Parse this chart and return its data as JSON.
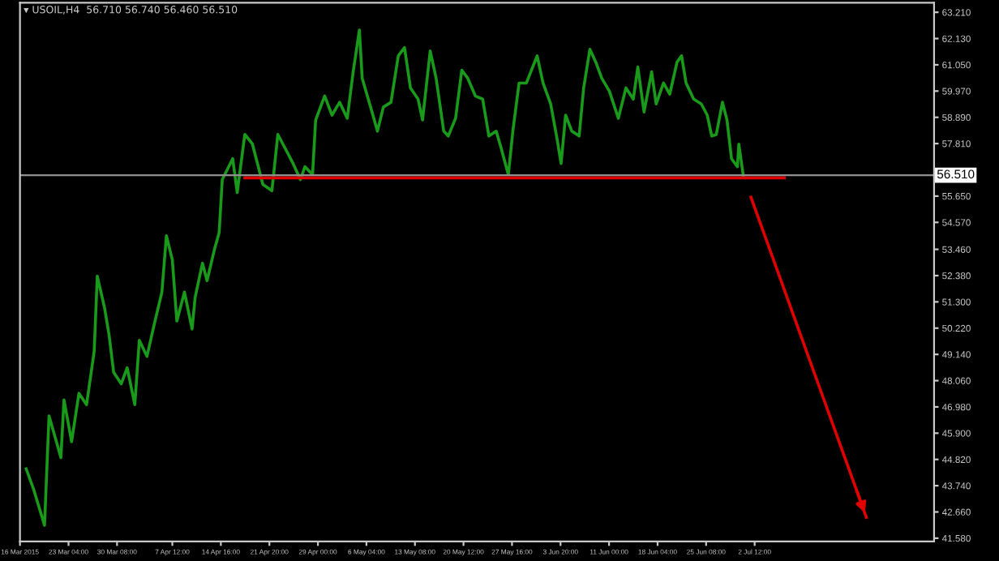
{
  "chart_data": {
    "type": "line",
    "title": "▾ USOIL,H4  56.710 56.740 56.460 56.510",
    "xlim": [
      "2015-03-16T00:00",
      "2015-07-29T00:00"
    ],
    "ylim": [
      41.45,
      63.6
    ],
    "xticks": [
      {
        "value": "2015-03-16T00:00",
        "label": "16 Mar 2015"
      },
      {
        "value": "2015-03-23T04:00",
        "label": "23 Mar 04:00"
      },
      {
        "value": "2015-03-30T08:00",
        "label": "30 Mar 08:00"
      },
      {
        "value": "2015-04-07T12:00",
        "label": "7 Apr 12:00"
      },
      {
        "value": "2015-04-14T16:00",
        "label": "14 Apr 16:00"
      },
      {
        "value": "2015-04-21T20:00",
        "label": "21 Apr 20:00"
      },
      {
        "value": "2015-04-29T00:00",
        "label": "29 Apr 00:00"
      },
      {
        "value": "2015-05-06T04:00",
        "label": "6 May 04:00"
      },
      {
        "value": "2015-05-13T08:00",
        "label": "13 May 08:00"
      },
      {
        "value": "2015-05-20T12:00",
        "label": "20 May 12:00"
      },
      {
        "value": "2015-05-27T16:00",
        "label": "27 May 16:00"
      },
      {
        "value": "2015-06-03T20:00",
        "label": "3 Jun 20:00"
      },
      {
        "value": "2015-06-11T00:00",
        "label": "11 Jun 00:00"
      },
      {
        "value": "2015-06-18T04:00",
        "label": "18 Jun 04:00"
      },
      {
        "value": "2015-06-25T08:00",
        "label": "25 Jun 08:00"
      },
      {
        "value": "2015-07-02T12:00",
        "label": "2 Jul 12:00"
      }
    ],
    "yticks": [
      {
        "value": 63.21,
        "label": "63.210"
      },
      {
        "value": 62.13,
        "label": "62.130"
      },
      {
        "value": 61.05,
        "label": "61.050"
      },
      {
        "value": 59.97,
        "label": "59.970"
      },
      {
        "value": 58.89,
        "label": "58.890"
      },
      {
        "value": 57.81,
        "label": "57.810"
      },
      {
        "value": 56.73,
        "label": null
      },
      {
        "value": 55.65,
        "label": "55.650"
      },
      {
        "value": 54.57,
        "label": "54.570"
      },
      {
        "value": 53.46,
        "label": "53.460"
      },
      {
        "value": 52.38,
        "label": "52.380"
      },
      {
        "value": 51.3,
        "label": "51.300"
      },
      {
        "value": 50.22,
        "label": "50.220"
      },
      {
        "value": 49.14,
        "label": "49.140"
      },
      {
        "value": 48.06,
        "label": "48.060"
      },
      {
        "value": 46.98,
        "label": "46.980"
      },
      {
        "value": 45.9,
        "label": "45.900"
      },
      {
        "value": 44.82,
        "label": "44.820"
      },
      {
        "value": 43.74,
        "label": "43.740"
      },
      {
        "value": 42.66,
        "label": "42.660"
      },
      {
        "value": 41.58,
        "label": "41.580"
      }
    ],
    "ref_lines": [
      {
        "axis": "y",
        "value": 56.51,
        "label": "56.510",
        "color": "#909090"
      }
    ],
    "grid": false,
    "legend": false,
    "series": [
      {
        "color": "#1a9a1a",
        "x": [
          "2015-03-16T22:00",
          "2015-03-18T01:00",
          "2015-03-19T15:00",
          "2015-03-20T07:00",
          "2015-03-21T09:00",
          "2015-03-22T01:00",
          "2015-03-22T12:00",
          "2015-03-23T15:00",
          "2015-03-24T17:00",
          "2015-03-25T20:00",
          "2015-03-26T23:00",
          "2015-03-27T10:00",
          "2015-03-28T12:00",
          "2015-03-29T04:00",
          "2015-03-29T20:00",
          "2015-03-30T23:00",
          "2015-03-31T20:00",
          "2015-04-01T23:00",
          "2015-04-02T15:00",
          "2015-04-03T18:00",
          "2015-04-04T20:00",
          "2015-04-05T23:00",
          "2015-04-06T15:00",
          "2015-04-07T12:00",
          "2015-04-08T04:00",
          "2015-04-09T07:00",
          "2015-04-10T10:00",
          "2015-04-10T21:00",
          "2015-04-11T23:00",
          "2015-04-12T15:00",
          "2015-04-13T18:00",
          "2015-04-14T10:00",
          "2015-04-14T21:00",
          "2015-04-16T10:00",
          "2015-04-17T02:00",
          "2015-04-18T05:00",
          "2015-04-19T08:00",
          "2015-04-20T21:00",
          "2015-04-22T05:00",
          "2015-04-23T02:00",
          "2015-04-25T08:00",
          "2015-04-26T10:00",
          "2015-04-27T02:00",
          "2015-04-28T05:00",
          "2015-04-28T16:00",
          "2015-04-30T00:00",
          "2015-05-01T02:00",
          "2015-05-02T05:00",
          "2015-05-03T08:00",
          "2015-05-04T05:00",
          "2015-05-05T03:00",
          "2015-05-05T13:00",
          "2015-05-07T03:00",
          "2015-05-07T19:00",
          "2015-05-08T16:00",
          "2015-05-09T19:00",
          "2015-05-10T21:00",
          "2015-05-11T19:00",
          "2015-05-12T16:00",
          "2015-05-13T19:00",
          "2015-05-14T11:00",
          "2015-05-15T14:00",
          "2015-05-16T11:00",
          "2015-05-17T14:00",
          "2015-05-18T06:00",
          "2015-05-19T08:00",
          "2015-05-20T06:00",
          "2015-05-21T03:00",
          "2015-05-22T06:00",
          "2015-05-23T08:00",
          "2015-05-24T06:00",
          "2015-05-25T08:00",
          "2015-05-26T01:00",
          "2015-05-27T03:00",
          "2015-05-27T19:00",
          "2015-05-28T17:00",
          "2015-05-29T19:00",
          "2015-05-31T09:00",
          "2015-06-01T06:00",
          "2015-06-02T09:00",
          "2015-06-03T06:00",
          "2015-06-03T22:00",
          "2015-06-04T14:00",
          "2015-06-05T12:00",
          "2015-06-06T14:00",
          "2015-06-07T06:00",
          "2015-06-08T04:00",
          "2015-06-09T01:00",
          "2015-06-09T22:00",
          "2015-06-11T01:00",
          "2015-06-12T09:00",
          "2015-06-13T12:00",
          "2015-06-14T14:00",
          "2015-06-15T06:00",
          "2015-06-16T04:00",
          "2015-06-17T07:00",
          "2015-06-17T23:00",
          "2015-06-19T01:00",
          "2015-06-19T23:00",
          "2015-06-21T01:00",
          "2015-06-21T17:00",
          "2015-06-22T09:00",
          "2015-06-23T12:00",
          "2015-06-24T15:00",
          "2015-06-25T12:00",
          "2015-06-26T04:00",
          "2015-06-26T20:00",
          "2015-06-27T18:00",
          "2015-06-28T10:00",
          "2015-06-29T02:00",
          "2015-06-29T23:00",
          "2015-06-30T04:00",
          "2015-06-30T20:00"
        ],
        "values": [
          44.43,
          43.57,
          42.11,
          46.61,
          45.55,
          44.89,
          47.27,
          45.55,
          47.54,
          47.07,
          49.26,
          52.36,
          51.04,
          49.92,
          48.4,
          47.93,
          48.59,
          47.07,
          49.72,
          49.06,
          50.38,
          51.7,
          54.02,
          53.03,
          50.51,
          51.7,
          50.18,
          51.5,
          52.89,
          52.17,
          53.49,
          54.15,
          56.33,
          57.19,
          55.8,
          58.19,
          57.79,
          56.13,
          55.87,
          58.19,
          56.99,
          56.33,
          56.86,
          56.53,
          58.78,
          59.77,
          58.98,
          59.51,
          58.85,
          60.76,
          62.48,
          60.5,
          58.98,
          58.32,
          59.31,
          59.51,
          61.42,
          61.76,
          60.1,
          59.64,
          58.78,
          61.62,
          60.5,
          58.32,
          58.12,
          58.85,
          60.83,
          60.5,
          59.77,
          59.64,
          58.12,
          58.32,
          57.65,
          56.53,
          58.32,
          60.3,
          60.3,
          61.42,
          60.3,
          59.44,
          58.12,
          56.99,
          58.98,
          58.32,
          58.12,
          60.1,
          61.69,
          61.16,
          60.5,
          59.97,
          58.85,
          60.1,
          59.64,
          60.96,
          59.11,
          60.76,
          59.44,
          60.3,
          59.84,
          61.16,
          61.42,
          60.3,
          59.64,
          59.44,
          58.98,
          58.12,
          58.18,
          59.51,
          58.78,
          57.19,
          56.86,
          57.79,
          56.47
        ]
      },
      {
        "color": "#e00000",
        "x": [
          "2015-04-18T05:00",
          "2015-07-06T21:00"
        ],
        "values": [
          56.4,
          56.4
        ]
      },
      {
        "color": "#e00000",
        "x": [
          "2015-07-01T23:00",
          "2015-07-19T00:00"
        ],
        "values": [
          55.6,
          42.44
        ]
      }
    ]
  }
}
